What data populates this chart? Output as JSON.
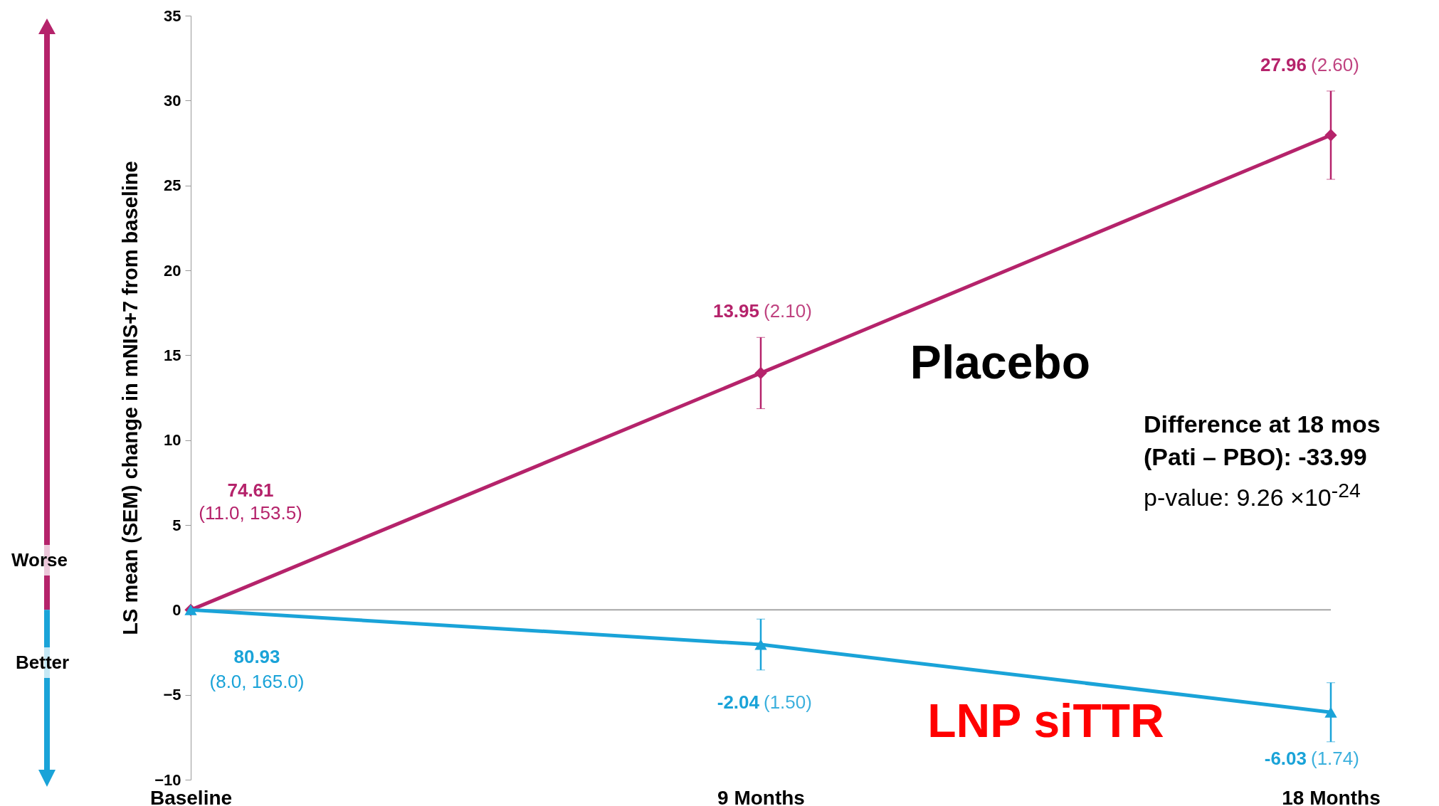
{
  "chart_data": {
    "type": "line",
    "categories": [
      "Baseline",
      "9 Months",
      "18 Months"
    ],
    "ylabel": "LS mean (SEM) change in mNIS+7 from baseline",
    "ylim": [
      -10,
      35
    ],
    "yticks": [
      -10,
      -5,
      0,
      5,
      10,
      15,
      20,
      25,
      30,
      35
    ],
    "series": [
      {
        "name": "Placebo",
        "color": "#b5236b",
        "marker": "diamond",
        "values": [
          0,
          13.95,
          27.96
        ],
        "errors": [
          null,
          2.1,
          2.6
        ],
        "value_labels": [
          null,
          "13.95 (2.10)",
          "27.96 (2.60)"
        ]
      },
      {
        "name": "LNP siTTR",
        "color": "#1aa3d8",
        "marker": "triangle",
        "values": [
          0,
          -2.04,
          -6.03
        ],
        "errors": [
          null,
          1.5,
          1.74
        ],
        "value_labels": [
          null,
          "-2.04 (1.50)",
          "-6.03 (1.74)"
        ]
      }
    ],
    "ref_lines": [
      {
        "axis": "y",
        "value": 0,
        "color": "#a6a6a6"
      }
    ],
    "annotations": [
      "Worse",
      "Better",
      "Difference at 18 mos\n(Pati – PBO): -33.99",
      "p-value: 9.26 ×10$^{-24}$",
      "74.61\n(11.0, 153.5)",
      "80.93\n(8.0, 165.0)"
    ]
  }
}
